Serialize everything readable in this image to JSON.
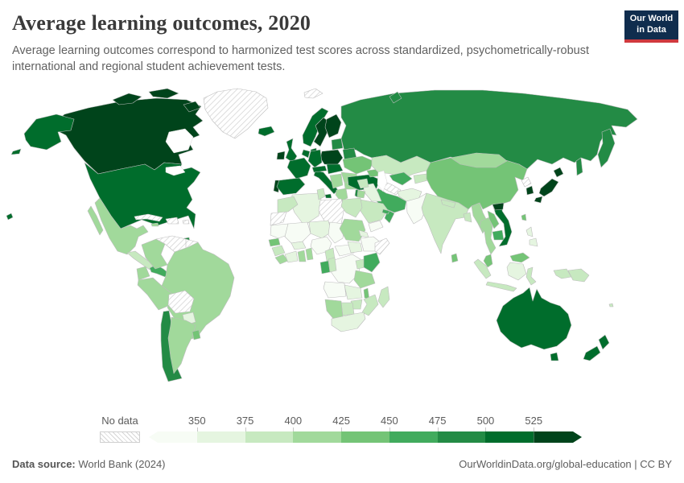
{
  "header": {
    "title": "Average learning outcomes, 2020",
    "subtitle": "Average learning outcomes correspond to harmonized test scores across standardized, psychometrically-robust international and regional student achievement tests."
  },
  "logo": {
    "line1": "Our World",
    "line2": "in Data",
    "background": "#102d4e",
    "accent_bar": "#d0393e"
  },
  "footer": {
    "source_label": "Data source:",
    "source_value": " World Bank (2024)",
    "right_text": "OurWorldinData.org/global-education | CC BY"
  },
  "chart_data": {
    "type": "choropleth_map",
    "title": "Average learning outcomes, 2020",
    "unit": "harmonized test score",
    "legend": {
      "no_data_label": "No data",
      "ticks": [
        "350",
        "375",
        "400",
        "425",
        "450",
        "475",
        "500",
        "525"
      ],
      "position": "bottom"
    },
    "palette": [
      "#f7fcf5",
      "#e5f5e0",
      "#c7e9c0",
      "#a1d99b",
      "#74c476",
      "#41ab5d",
      "#238b45",
      "#006d2c",
      "#00441b"
    ],
    "bands": [
      {
        "band": 1,
        "range": "< 350"
      },
      {
        "band": 2,
        "range": "350–375"
      },
      {
        "band": 3,
        "range": "375–400"
      },
      {
        "band": 4,
        "range": "400–425"
      },
      {
        "band": 5,
        "range": "425–450"
      },
      {
        "band": 6,
        "range": "450–475"
      },
      {
        "band": 7,
        "range": "475–500"
      },
      {
        "band": 8,
        "range": "500–525"
      },
      {
        "band": 9,
        "range": "> 525"
      },
      {
        "band": 0,
        "range": "No data"
      }
    ],
    "regions": {
      "greenland": 0,
      "svalbard": 0,
      "canada": 9,
      "canada-islands-a": 9,
      "canada-islands-b": 9,
      "canada-islands-c": 9,
      "alaska": 8,
      "aleutians": 8,
      "usa": 8,
      "hawaii": 8,
      "baja": 4,
      "mexico": 4,
      "central-america": 3,
      "costa-rica-panama": 6,
      "cuba": 0,
      "jamaica": 4,
      "hispaniola": 0,
      "puerto-rico": 0,
      "trinidad": 7,
      "colombia": 4,
      "venezuela": 0,
      "guyana": 0,
      "brazil": 4,
      "ecuador": 4,
      "peru": 4,
      "bolivia": 0,
      "paraguay": 2,
      "chile": 7,
      "argentina": 4,
      "uruguay": 5,
      "russia": 7,
      "novaya-zemlya": 7,
      "kamchatka": 7,
      "sakhalin": 7,
      "iceland": 8,
      "ireland": 9,
      "uk": 8,
      "norway": 8,
      "sweden": 9,
      "finland": 9,
      "denmark": 8,
      "baltics": 7,
      "poland": 9,
      "germany": 8,
      "benelux": 8,
      "france": 8,
      "portugal": 9,
      "spain": 8,
      "italy": 8,
      "sicily": 8,
      "alpine": 8,
      "central-europe": 8,
      "belarus": 7,
      "ukraine": 5,
      "romania": 4,
      "balkans": 4,
      "bulgaria": 4,
      "greece": 4,
      "turkey": 8,
      "caucasus": 5,
      "kazakhstan": 3,
      "uzbekistan": 6,
      "turkmenistan": 0,
      "kyrgyz-tajik": 3,
      "afghanistan": 2,
      "pakistan": 1,
      "iran": 6,
      "iraq": 2,
      "syria": 3,
      "israel": 7,
      "jordan": 4,
      "saudi-arabia": 3,
      "yemen": 1,
      "oman": 6,
      "uae": 6,
      "china": 5,
      "mongolia": 4,
      "north-korea": 0,
      "south-korea": 9,
      "japan-hokkaido": 9,
      "japan-honshu": 9,
      "japan-kyushu": 9,
      "taiwan": 5,
      "india": 3,
      "nepal": 3,
      "bangladesh": 3,
      "sri-lanka": 5,
      "myanmar": 4,
      "thailand": 4,
      "laos": 5,
      "cambodia": 6,
      "vietnam": 8,
      "vietnam-north": 9,
      "malaysia": 5,
      "malaysia-borneo": 5,
      "sumatra": 3,
      "java": 3,
      "kalimantan": 2,
      "sulawesi": 3,
      "west-papua": 3,
      "png": 3,
      "philippines-a": 2,
      "philippines-b": 2,
      "morocco": 3,
      "western-sahara": 0,
      "algeria": 2,
      "tunisia": 3,
      "libya": 0,
      "egypt": 3,
      "mauritania": 1,
      "senegal": 5,
      "guinea": 3,
      "sierra-leone": 4,
      "mali": 1,
      "burkina-faso": 2,
      "ivory-coast": 2,
      "ghana": 4,
      "benin-togo": 4,
      "niger": 2,
      "nigeria": 1,
      "chad": 1,
      "sudan": 4,
      "eritrea": 2,
      "ethiopia": 1,
      "somalia": 0,
      "cameroon": 3,
      "central-african-republic": 1,
      "south-sudan": 2,
      "drc": 1,
      "gabon": 6,
      "congo": 3,
      "uganda": 3,
      "kenya": 6,
      "tanzania": 4,
      "angola": 1,
      "zambia": 2,
      "malawi": 5,
      "mozambique": 3,
      "zimbabwe": 3,
      "botswana": 3,
      "namibia": 4,
      "south-africa": 2,
      "madagascar": 3,
      "australia": 8,
      "tasmania": 8,
      "nz-north": 8,
      "nz-south": 8,
      "fiji": 3
    }
  }
}
